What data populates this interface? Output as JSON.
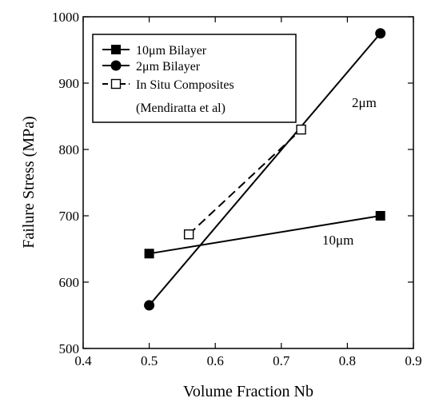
{
  "chart_data": {
    "type": "line",
    "xlabel": "Volume Fraction Nb",
    "ylabel": "Failure Stress (MPa)",
    "xlim": [
      0.4,
      0.9
    ],
    "ylim": [
      500,
      1000
    ],
    "xticks": [
      0.4,
      0.5,
      0.6,
      0.7,
      0.8,
      0.9
    ],
    "yticks": [
      500,
      600,
      700,
      800,
      900,
      1000
    ],
    "xtick_labels": [
      "0.4",
      "0.5",
      "0.6",
      "0.7",
      "0.8",
      "0.9"
    ],
    "ytick_labels": [
      "500",
      "600",
      "700",
      "800",
      "900",
      "1000"
    ],
    "grid": false,
    "legend_position": "top-left",
    "series": [
      {
        "name": "10μm Bilayer",
        "marker": "filled-square",
        "line": "solid",
        "x": [
          0.5,
          0.85
        ],
        "y": [
          643,
          700
        ]
      },
      {
        "name": "2μm Bilayer",
        "marker": "filled-circle",
        "line": "solid",
        "x": [
          0.5,
          0.85
        ],
        "y": [
          565,
          975
        ]
      },
      {
        "name": "In Situ Composites",
        "name_line2": "(Mendiratta et al)",
        "marker": "open-square",
        "line": "dashed",
        "x": [
          0.56,
          0.73
        ],
        "y": [
          672,
          830
        ]
      }
    ],
    "annotations": [
      {
        "text": "2μm",
        "x": 0.77,
        "y": 869
      },
      {
        "text": "10μm",
        "x": 0.72,
        "y": 677
      }
    ]
  }
}
